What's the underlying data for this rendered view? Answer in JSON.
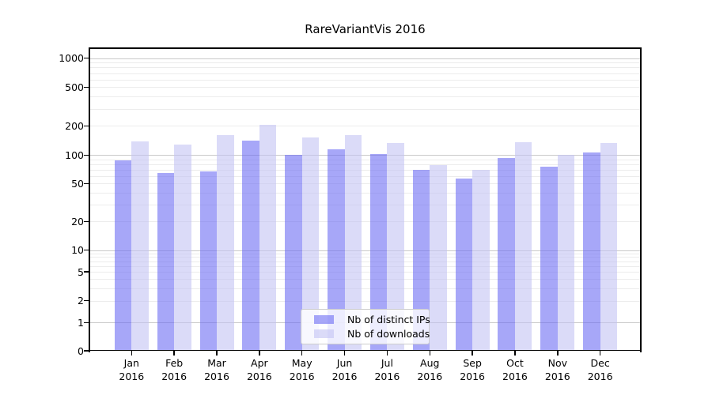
{
  "chart_data": {
    "type": "bar",
    "title": "RareVariantVis 2016",
    "y_scale": "symlog",
    "ylim": [
      0,
      1250
    ],
    "y_ticks": [
      0,
      1,
      2,
      5,
      10,
      20,
      50,
      100,
      200,
      500,
      1000
    ],
    "grid": {
      "major_color": "#c9c9c9",
      "minor_color": "#ececec",
      "minor_ticks_per_decade": [
        2,
        3,
        4,
        5,
        6,
        7,
        8,
        9
      ]
    },
    "categories": [
      "Jan",
      "Feb",
      "Mar",
      "Apr",
      "May",
      "Jun",
      "Jul",
      "Aug",
      "Sep",
      "Oct",
      "Nov",
      "Dec"
    ],
    "category_year": "2016",
    "legend_position": "lower center",
    "series": [
      {
        "name": "Nb of distinct IPs",
        "color": "rgba(108,108,243,0.6)",
        "values": [
          88,
          65,
          67,
          142,
          101,
          114,
          103,
          70,
          57,
          93,
          75,
          107
        ]
      },
      {
        "name": "Nb of downloads",
        "color": "rgba(195,195,243,0.6)",
        "values": [
          138,
          129,
          162,
          206,
          151,
          162,
          134,
          79,
          70,
          136,
          101,
          134
        ]
      }
    ]
  }
}
